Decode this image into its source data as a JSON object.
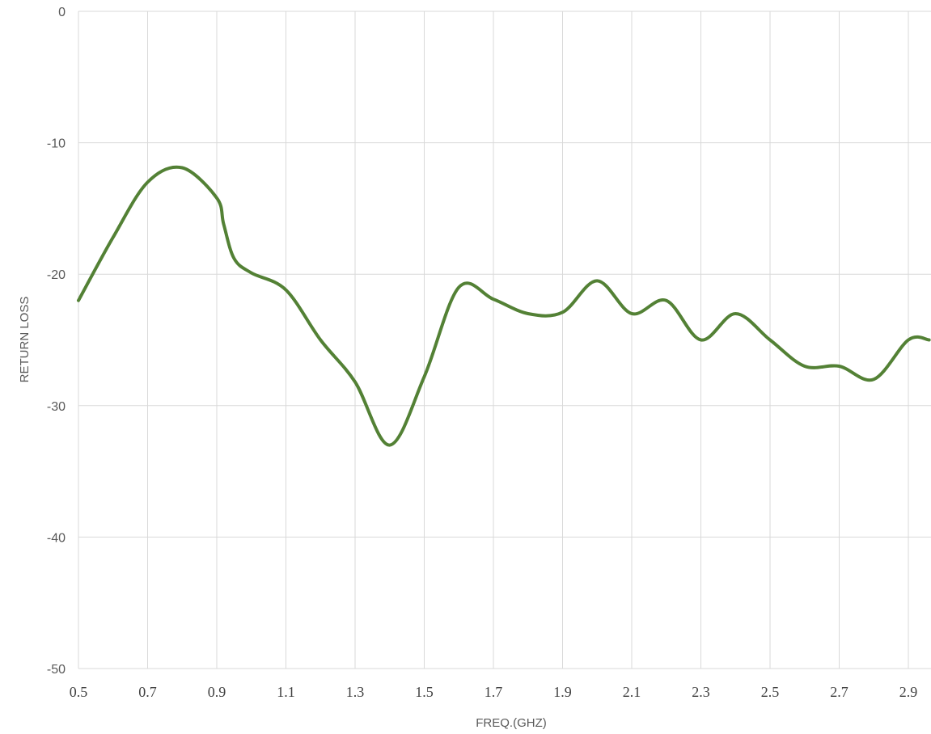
{
  "chart_data": {
    "type": "line",
    "title": "",
    "xlabel": "FREQ.(GHZ)",
    "ylabel": "RETURN LOSS",
    "xlim": [
      0.5,
      2.96
    ],
    "ylim": [
      -50,
      0
    ],
    "grid": true,
    "legend": "none",
    "x_ticks": [
      "0.5",
      "0.7",
      "0.9",
      "1.1",
      "1.3",
      "1.5",
      "1.7",
      "1.9",
      "2.1",
      "2.3",
      "2.5",
      "2.7",
      "2.9"
    ],
    "y_ticks": [
      "0",
      "-10",
      "-20",
      "-30",
      "-40",
      "-50"
    ],
    "series": [
      {
        "color": "#538135",
        "x": [
          0.5,
          0.6,
          0.7,
          0.8,
          0.9,
          0.92,
          0.95,
          1.0,
          1.1,
          1.2,
          1.3,
          1.4,
          1.5,
          1.6,
          1.7,
          1.8,
          1.9,
          2.0,
          2.1,
          2.2,
          2.3,
          2.4,
          2.5,
          2.6,
          2.7,
          2.8,
          2.9,
          2.96
        ],
        "y": [
          -22,
          -17.2,
          -13,
          -11.9,
          -14.2,
          -16.2,
          -18.8,
          -19.9,
          -21.2,
          -25.0,
          -28.2,
          -33.0,
          -27.8,
          -21.0,
          -21.9,
          -23.0,
          -22.9,
          -20.5,
          -23.0,
          -22.0,
          -25.0,
          -23.0,
          -25.0,
          -27.0,
          -27.0,
          -28.0,
          -25.0,
          -25.0
        ]
      }
    ]
  }
}
